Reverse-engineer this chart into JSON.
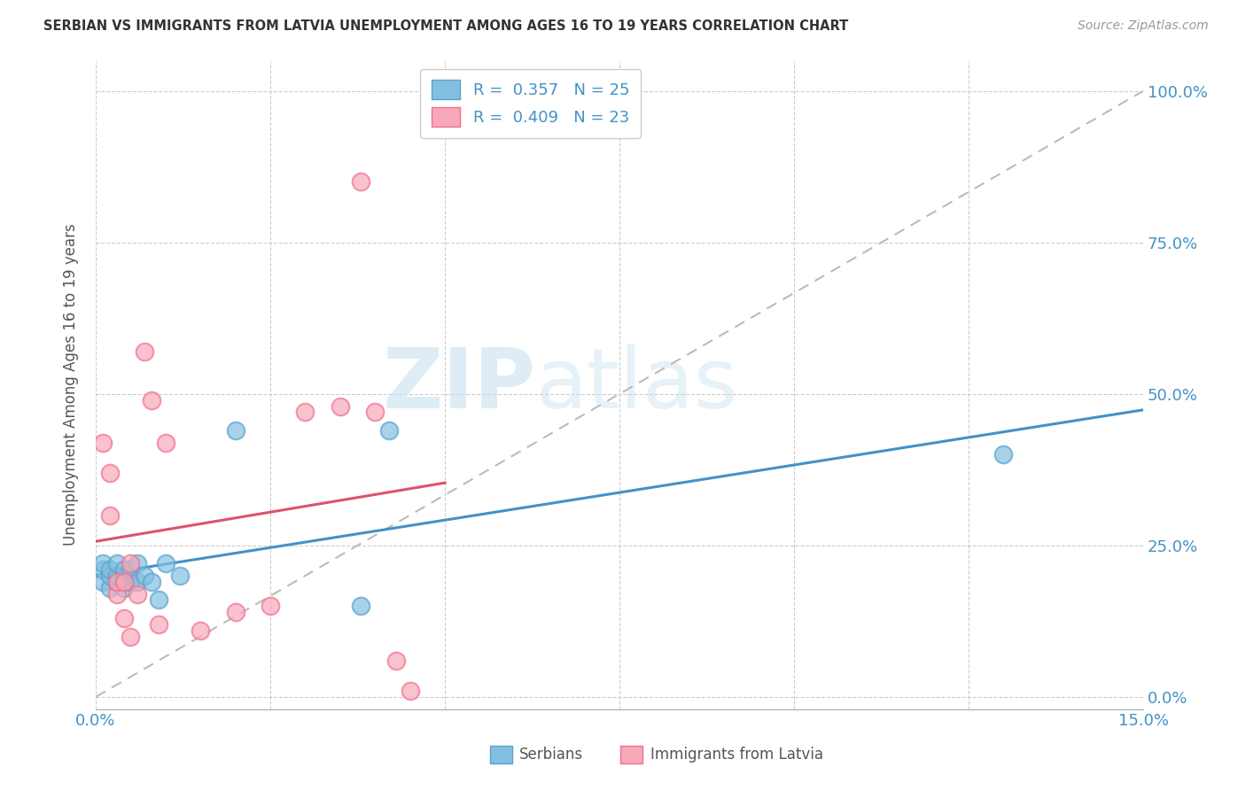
{
  "title": "SERBIAN VS IMMIGRANTS FROM LATVIA UNEMPLOYMENT AMONG AGES 16 TO 19 YEARS CORRELATION CHART",
  "source": "Source: ZipAtlas.com",
  "ylabel": "Unemployment Among Ages 16 to 19 years",
  "xlim": [
    0.0,
    0.15
  ],
  "ylim": [
    -0.02,
    1.05
  ],
  "xtick_positions": [
    0.0,
    0.025,
    0.05,
    0.075,
    0.1,
    0.125,
    0.15
  ],
  "xtick_labels": [
    "0.0%",
    "",
    "",
    "",
    "",
    "",
    "15.0%"
  ],
  "ytick_vals": [
    0.0,
    0.25,
    0.5,
    0.75,
    1.0
  ],
  "ytick_labels_right": [
    "0.0%",
    "25.0%",
    "50.0%",
    "75.0%",
    "100.0%"
  ],
  "serbian_color": "#82bfe0",
  "serbian_color_edge": "#5ba3ce",
  "latvia_color": "#f8a8b8",
  "latvia_color_edge": "#f07090",
  "serbian_R": 0.357,
  "serbian_N": 25,
  "latvia_R": 0.409,
  "latvia_N": 23,
  "bottom_legend_serbian": "Serbians",
  "bottom_legend_latvia": "Immigrants from Latvia",
  "watermark_zip": "ZIP",
  "watermark_atlas": "atlas",
  "trendline_color_serbian": "#4292c6",
  "trendline_color_latvia": "#e05070",
  "diagonal_color": "#bbbbbb",
  "serbian_x": [
    0.001,
    0.001,
    0.001,
    0.002,
    0.002,
    0.002,
    0.003,
    0.003,
    0.003,
    0.004,
    0.004,
    0.004,
    0.005,
    0.005,
    0.006,
    0.006,
    0.007,
    0.008,
    0.009,
    0.01,
    0.012,
    0.02,
    0.038,
    0.042,
    0.13
  ],
  "serbian_y": [
    0.19,
    0.21,
    0.22,
    0.18,
    0.2,
    0.21,
    0.19,
    0.2,
    0.22,
    0.18,
    0.2,
    0.21,
    0.19,
    0.21,
    0.19,
    0.22,
    0.2,
    0.19,
    0.16,
    0.22,
    0.2,
    0.44,
    0.15,
    0.44,
    0.4
  ],
  "latvia_x": [
    0.001,
    0.002,
    0.002,
    0.003,
    0.003,
    0.004,
    0.004,
    0.005,
    0.005,
    0.006,
    0.007,
    0.008,
    0.009,
    0.01,
    0.015,
    0.02,
    0.025,
    0.03,
    0.035,
    0.038,
    0.04,
    0.043,
    0.045
  ],
  "latvia_y": [
    0.42,
    0.3,
    0.37,
    0.17,
    0.19,
    0.13,
    0.19,
    0.1,
    0.22,
    0.17,
    0.57,
    0.49,
    0.12,
    0.42,
    0.11,
    0.14,
    0.15,
    0.47,
    0.48,
    0.85,
    0.47,
    0.06,
    0.01
  ]
}
